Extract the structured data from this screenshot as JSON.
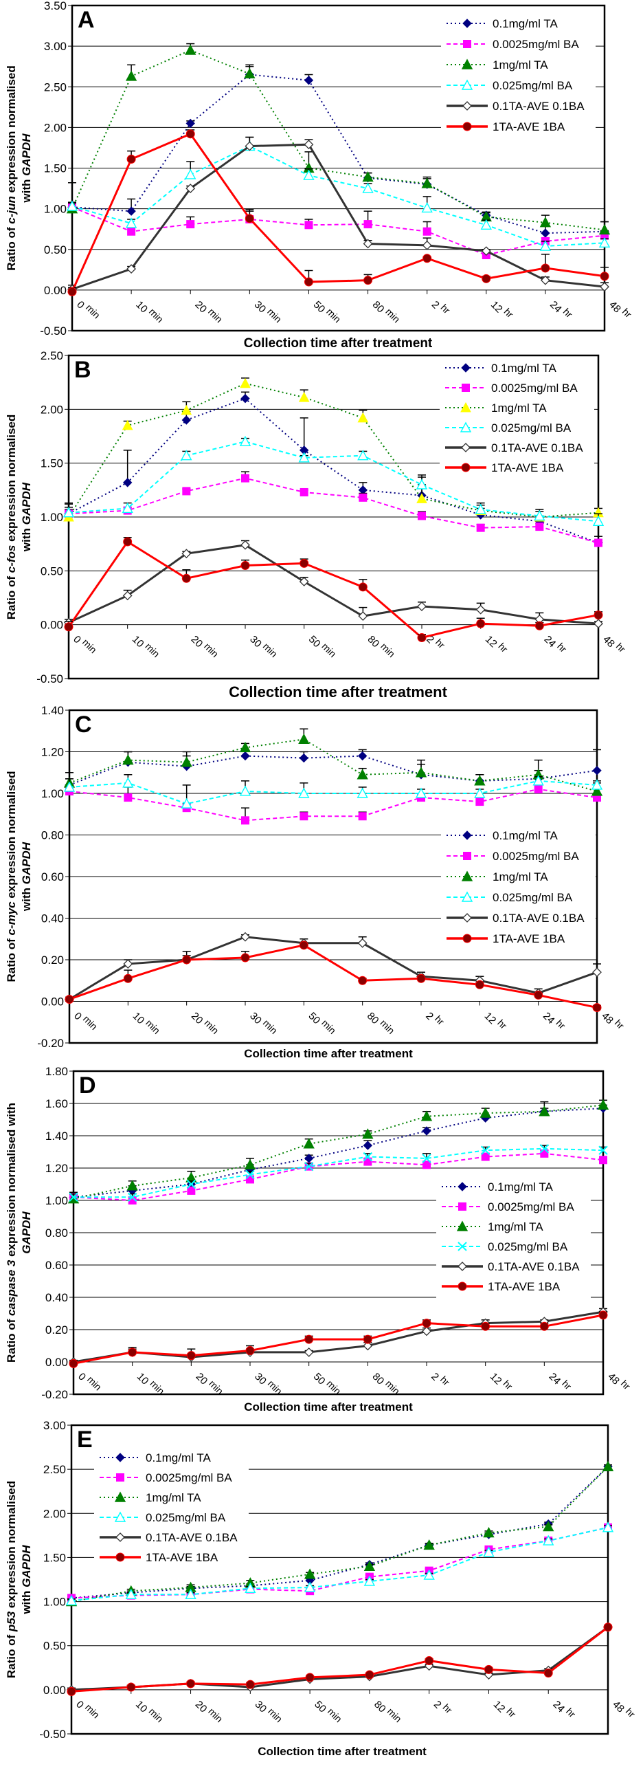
{
  "chart_data": [
    {
      "type": "line",
      "panel": "A",
      "gene": "c-jun",
      "ylabel_parts": [
        "Ratio of ",
        "c-jun",
        " expression normalised",
        "with ",
        "GAPDH"
      ],
      "xlabel": "Collection time after treatment",
      "categories": [
        "0 min",
        "10 min",
        "20 min",
        "30 min",
        "50 min",
        "80 min",
        "2 hr",
        "12 hr",
        "24 hr",
        "48 hr"
      ],
      "ylim": [
        -0.5,
        3.5
      ],
      "yticks": [
        "-0.50",
        "0.00",
        "0.50",
        "1.00",
        "1.50",
        "2.00",
        "2.50",
        "3.00",
        "3.50"
      ],
      "grid": true,
      "legend_position": "top-right",
      "series": [
        {
          "name": "0.1mg/ml TA",
          "values": [
            1.02,
            0.97,
            2.05,
            2.65,
            2.58,
            1.38,
            1.3,
            0.92,
            0.7,
            0.72
          ],
          "errors": [
            0.3,
            0.15,
            0.03,
            0.1,
            0.07,
            0.06,
            0.07,
            0.04,
            0.1,
            0.12
          ]
        },
        {
          "name": "0.0025mg/ml BA",
          "values": [
            1.02,
            0.72,
            0.81,
            0.87,
            0.8,
            0.81,
            0.72,
            0.43,
            0.6,
            0.67
          ],
          "errors": [
            0.05,
            0.05,
            0.09,
            0.1,
            0.07,
            0.16,
            0.12,
            0.03,
            0.04,
            0.06
          ]
        },
        {
          "name": "1mg/ml TA",
          "values": [
            1.0,
            2.63,
            2.95,
            2.66,
            1.5,
            1.39,
            1.31,
            0.9,
            0.83,
            0.74
          ],
          "errors": [
            0.07,
            0.14,
            0.08,
            0.11,
            0.2,
            0.05,
            0.08,
            0.05,
            0.09,
            0.1
          ]
        },
        {
          "name": "0.025mg/ml BA",
          "values": [
            1.03,
            0.82,
            1.42,
            1.77,
            1.41,
            1.25,
            1.01,
            0.8,
            0.54,
            0.58
          ],
          "errors": [
            0.05,
            0.05,
            0.16,
            0.11,
            0.08,
            0.06,
            0.14,
            0.06,
            0.06,
            0.05
          ]
        },
        {
          "name": "0.1TA-AVE 0.1BA",
          "values": [
            0.01,
            0.26,
            1.25,
            1.77,
            1.79,
            0.57,
            0.55,
            0.48,
            0.12,
            0.04
          ],
          "errors": [
            0.05,
            0.03,
            0.03,
            0.11,
            0.06,
            0.04,
            0.09,
            0.02,
            0.04,
            0.05
          ]
        },
        {
          "name": "1TA-AVE 1BA",
          "values": [
            -0.02,
            1.61,
            1.92,
            0.88,
            0.1,
            0.12,
            0.39,
            0.14,
            0.27,
            0.17
          ],
          "errors": [
            0.05,
            0.1,
            0.05,
            0.11,
            0.14,
            0.07,
            0.02,
            0.03,
            0.17,
            0.11
          ]
        }
      ]
    },
    {
      "type": "line",
      "panel": "B",
      "gene": "c-fos",
      "ylabel_parts": [
        "Ratio of ",
        "c-fos",
        " expression normalised",
        "with ",
        "GAPDH"
      ],
      "xlabel": "Collection time after treatment",
      "categories": [
        "0 min",
        "10 min",
        "20 min",
        "30 min",
        "50 min",
        "80 min",
        "2 hr",
        "12 hr",
        "24 hr",
        "48 hr"
      ],
      "ylim": [
        -0.5,
        2.5
      ],
      "yticks": [
        "-0.50",
        "0.00",
        "0.50",
        "1.00",
        "1.50",
        "2.00",
        "2.50"
      ],
      "grid": true,
      "legend_position": "top-right",
      "series": [
        {
          "name": "0.1mg/ml TA",
          "values": [
            1.03,
            1.32,
            1.9,
            2.1,
            1.62,
            1.25,
            1.2,
            1.02,
            0.96,
            0.76
          ],
          "errors": [
            0.1,
            0.3,
            0.08,
            0.06,
            0.3,
            0.07,
            0.1,
            0.06,
            0.05,
            0.06
          ]
        },
        {
          "name": "0.0025mg/ml BA",
          "values": [
            1.03,
            1.06,
            1.24,
            1.36,
            1.23,
            1.18,
            1.01,
            0.9,
            0.91,
            0.76
          ],
          "errors": [
            0.04,
            0.03,
            0.02,
            0.06,
            0.02,
            0.04,
            0.04,
            0.03,
            0.03,
            0.03
          ]
        },
        {
          "name": "1mg/ml TA",
          "values": [
            1.0,
            1.85,
            1.99,
            2.24,
            2.11,
            1.92,
            1.17,
            1.06,
            1.0,
            1.04
          ],
          "errors": [
            0.12,
            0.04,
            0.08,
            0.05,
            0.07,
            0.07,
            0.2,
            0.05,
            0.05,
            0.04
          ]
        },
        {
          "name": "0.025mg/ml BA",
          "values": [
            1.04,
            1.08,
            1.57,
            1.7,
            1.55,
            1.57,
            1.3,
            1.07,
            1.01,
            0.96
          ],
          "errors": [
            0.05,
            0.05,
            0.04,
            0.03,
            0.02,
            0.04,
            0.09,
            0.06,
            0.06,
            0.07
          ]
        },
        {
          "name": "0.1TA-AVE 0.1BA",
          "values": [
            0.02,
            0.27,
            0.66,
            0.74,
            0.4,
            0.08,
            0.17,
            0.14,
            0.05,
            0.01
          ],
          "errors": [
            0.03,
            0.05,
            0.02,
            0.04,
            0.04,
            0.08,
            0.04,
            0.06,
            0.06,
            0.02
          ]
        },
        {
          "name": "1TA-AVE 1BA",
          "values": [
            -0.02,
            0.77,
            0.43,
            0.55,
            0.57,
            0.35,
            -0.12,
            0.01,
            -0.01,
            0.09
          ],
          "errors": [
            0.05,
            0.04,
            0.08,
            0.05,
            0.04,
            0.07,
            0.03,
            0.05,
            0.03,
            0.03
          ]
        }
      ]
    },
    {
      "type": "line",
      "panel": "C",
      "gene": "c-myc",
      "ylabel_parts": [
        "Ratio of ",
        "c-myc",
        " expression normalised",
        "with ",
        "GAPDH"
      ],
      "xlabel": "Collection time after treatment",
      "categories": [
        "0 min",
        "10 min",
        "20 min",
        "30 min",
        "50 min",
        "80 min",
        "2 hr",
        "12 hr",
        "24 hr",
        "48 hr"
      ],
      "ylim": [
        -0.2,
        1.4
      ],
      "yticks": [
        "-0.20",
        "0.00",
        "0.20",
        "0.40",
        "0.60",
        "0.80",
        "1.00",
        "1.20",
        "1.40"
      ],
      "grid": true,
      "legend_position": "center-right",
      "series": [
        {
          "name": "0.1mg/ml TA",
          "values": [
            1.04,
            1.15,
            1.13,
            1.18,
            1.17,
            1.18,
            1.09,
            1.06,
            1.07,
            1.11
          ],
          "errors": [
            0.03,
            0.05,
            0.05,
            0.03,
            0.03,
            0.03,
            0.05,
            0.03,
            0.04,
            0.1
          ]
        },
        {
          "name": "0.0025mg/ml BA",
          "values": [
            1.01,
            0.98,
            0.93,
            0.87,
            0.89,
            0.89,
            0.98,
            0.96,
            1.02,
            0.98
          ],
          "errors": [
            0.02,
            0.05,
            0.02,
            0.06,
            0.02,
            0.02,
            0.02,
            0.02,
            0.02,
            0.02
          ]
        },
        {
          "name": "1mg/ml TA",
          "values": [
            1.05,
            1.16,
            1.15,
            1.22,
            1.26,
            1.09,
            1.1,
            1.06,
            1.09,
            1.01
          ],
          "errors": [
            0.05,
            0.04,
            0.05,
            0.02,
            0.05,
            0.03,
            0.06,
            0.03,
            0.07,
            0.04
          ]
        },
        {
          "name": "0.025mg/ml BA",
          "values": [
            1.03,
            1.05,
            0.95,
            1.01,
            1.0,
            1.0,
            1.0,
            1.0,
            1.06,
            1.04
          ],
          "errors": [
            0.04,
            0.04,
            0.09,
            0.05,
            0.05,
            0.03,
            0.02,
            0.02,
            0.02,
            0.02
          ]
        },
        {
          "name": "0.1TA-AVE 0.1BA",
          "values": [
            0.01,
            0.18,
            0.2,
            0.31,
            0.28,
            0.28,
            0.12,
            0.1,
            0.04,
            0.14
          ],
          "errors": [
            0.01,
            0.02,
            0.04,
            0.01,
            0.02,
            0.03,
            0.02,
            0.02,
            0.02,
            0.04
          ]
        },
        {
          "name": "1TA-AVE 1BA",
          "values": [
            0.01,
            0.11,
            0.2,
            0.21,
            0.27,
            0.1,
            0.11,
            0.08,
            0.03,
            -0.03
          ],
          "errors": [
            0.01,
            0.04,
            0.02,
            0.03,
            0.01,
            0.01,
            0.01,
            0.01,
            0.01,
            0.01
          ]
        }
      ]
    },
    {
      "type": "line",
      "panel": "D",
      "gene": "caspase 3",
      "ylabel_parts": [
        "Ratio of ",
        "caspase 3",
        " expression normalised  with",
        "",
        "GAPDH"
      ],
      "xlabel": "Collection time after treatment",
      "categories": [
        "0 min",
        "10 min",
        "20 min",
        "30 min",
        "50 min",
        "80 min",
        "2 hr",
        "12 hr",
        "24 hr",
        "48 hr"
      ],
      "ylim": [
        -0.2,
        1.8
      ],
      "yticks": [
        "-0.20",
        "0.00",
        "0.20",
        "0.40",
        "0.60",
        "0.80",
        "1.00",
        "1.20",
        "1.40",
        "1.60",
        "1.80"
      ],
      "grid": true,
      "legend_position": "center-right",
      "series": [
        {
          "name": "0.1mg/ml TA",
          "values": [
            1.02,
            1.06,
            1.1,
            1.19,
            1.26,
            1.34,
            1.43,
            1.51,
            1.55,
            1.57
          ],
          "errors": [
            0.03,
            0.03,
            0.02,
            0.03,
            0.02,
            0.03,
            0.02,
            0.02,
            0.02,
            0.02
          ]
        },
        {
          "name": "0.0025mg/ml BA",
          "values": [
            1.02,
            1.0,
            1.06,
            1.13,
            1.21,
            1.24,
            1.22,
            1.27,
            1.29,
            1.25
          ],
          "errors": [
            0.02,
            0.02,
            0.02,
            0.02,
            0.02,
            0.02,
            0.02,
            0.02,
            0.02,
            0.02
          ]
        },
        {
          "name": "1mg/ml TA",
          "values": [
            1.01,
            1.09,
            1.14,
            1.22,
            1.35,
            1.41,
            1.52,
            1.54,
            1.55,
            1.59
          ],
          "errors": [
            0.03,
            0.03,
            0.04,
            0.04,
            0.03,
            0.02,
            0.03,
            0.03,
            0.06,
            0.03
          ]
        },
        {
          "name": "0.025mg/ml BA",
          "values": [
            1.02,
            1.02,
            1.1,
            1.16,
            1.21,
            1.27,
            1.26,
            1.31,
            1.32,
            1.31
          ],
          "errors": [
            0.02,
            0.02,
            0.02,
            0.02,
            0.02,
            0.02,
            0.03,
            0.02,
            0.02,
            0.02
          ]
        },
        {
          "name": "0.1TA-AVE 0.1BA",
          "values": [
            0.0,
            0.06,
            0.03,
            0.06,
            0.06,
            0.1,
            0.19,
            0.24,
            0.25,
            0.31
          ],
          "errors": [
            0.01,
            0.02,
            0.02,
            0.02,
            0.01,
            0.02,
            0.02,
            0.02,
            0.01,
            0.02
          ]
        },
        {
          "name": "1TA-AVE 1BA",
          "values": [
            -0.01,
            0.06,
            0.04,
            0.07,
            0.14,
            0.14,
            0.24,
            0.22,
            0.22,
            0.29
          ],
          "errors": [
            0.02,
            0.03,
            0.04,
            0.03,
            0.02,
            0.02,
            0.02,
            0.02,
            0.02,
            0.02
          ]
        }
      ]
    },
    {
      "type": "line",
      "panel": "E",
      "gene": "p53",
      "ylabel_parts": [
        "Ratio of ",
        "p53",
        "  expression normalised",
        "with ",
        "GAPDH"
      ],
      "xlabel": "Collection time after treatment",
      "categories": [
        "0 min",
        "10 min",
        "20 min",
        "30 min",
        "50 min",
        "80 min",
        "2 hr",
        "12 hr",
        "24 hr",
        "48 hr"
      ],
      "ylim": [
        -0.5,
        3.0
      ],
      "yticks": [
        "-0.50",
        "0.00",
        "0.50",
        "1.00",
        "1.50",
        "2.00",
        "2.50",
        "3.00"
      ],
      "grid": true,
      "legend_position": "top-left",
      "series": [
        {
          "name": "0.1mg/ml TA",
          "values": [
            1.04,
            1.1,
            1.15,
            1.18,
            1.24,
            1.42,
            1.64,
            1.76,
            1.88,
            2.53
          ],
          "errors": [
            0.02,
            0.02,
            0.02,
            0.02,
            0.02,
            0.02,
            0.02,
            0.02,
            0.02,
            0.02
          ]
        },
        {
          "name": "0.0025mg/ml BA",
          "values": [
            1.04,
            1.07,
            1.08,
            1.14,
            1.12,
            1.28,
            1.35,
            1.59,
            1.69,
            1.84
          ],
          "errors": [
            0.02,
            0.02,
            0.02,
            0.02,
            0.02,
            0.02,
            0.02,
            0.02,
            0.02,
            0.02
          ]
        },
        {
          "name": "1mg/ml TA",
          "values": [
            1.0,
            1.12,
            1.16,
            1.21,
            1.31,
            1.4,
            1.64,
            1.78,
            1.85,
            2.53
          ],
          "errors": [
            0.02,
            0.02,
            0.03,
            0.03,
            0.02,
            0.02,
            0.02,
            0.02,
            0.02,
            0.02
          ]
        },
        {
          "name": "0.025mg/ml BA",
          "values": [
            1.01,
            1.08,
            1.08,
            1.15,
            1.16,
            1.23,
            1.3,
            1.56,
            1.69,
            1.84
          ],
          "errors": [
            0.02,
            0.02,
            0.02,
            0.02,
            0.02,
            0.02,
            0.02,
            0.02,
            0.02,
            0.02
          ]
        },
        {
          "name": "0.1TA-AVE 0.1BA",
          "values": [
            0.0,
            0.03,
            0.07,
            0.03,
            0.12,
            0.15,
            0.27,
            0.17,
            0.22,
            0.71
          ],
          "errors": [
            0.02,
            0.02,
            0.02,
            0.05,
            0.02,
            0.02,
            0.02,
            0.02,
            0.02,
            0.02
          ]
        },
        {
          "name": "1TA-AVE 1BA",
          "values": [
            -0.02,
            0.03,
            0.07,
            0.06,
            0.14,
            0.17,
            0.33,
            0.23,
            0.19,
            0.71
          ],
          "errors": [
            0.02,
            0.02,
            0.02,
            0.02,
            0.02,
            0.02,
            0.02,
            0.02,
            0.02,
            0.02
          ]
        }
      ]
    }
  ],
  "series_styles": [
    {
      "name": "0.1mg/ml TA",
      "color": "#000080",
      "marker": "diamond-filled",
      "dash": "dotted"
    },
    {
      "name": "0.0025mg/ml BA",
      "color": "#FF00FF",
      "marker": "square-filled",
      "dash": "dashed"
    },
    {
      "name": "1mg/ml TA",
      "color": "#008000",
      "marker": "triangle-filled",
      "dash": "dotted"
    },
    {
      "name": "0.025mg/ml BA",
      "color": "#00FFFF",
      "marker": "triangle-open",
      "dash": "dashed"
    },
    {
      "name": "0.1TA-AVE 0.1BA",
      "color": "#333333",
      "marker": "diamond-open",
      "dash": "solid"
    },
    {
      "name": "1TA-AVE 1BA",
      "color": "#FF0000",
      "marker": "circle-filled",
      "dash": "solid"
    }
  ]
}
